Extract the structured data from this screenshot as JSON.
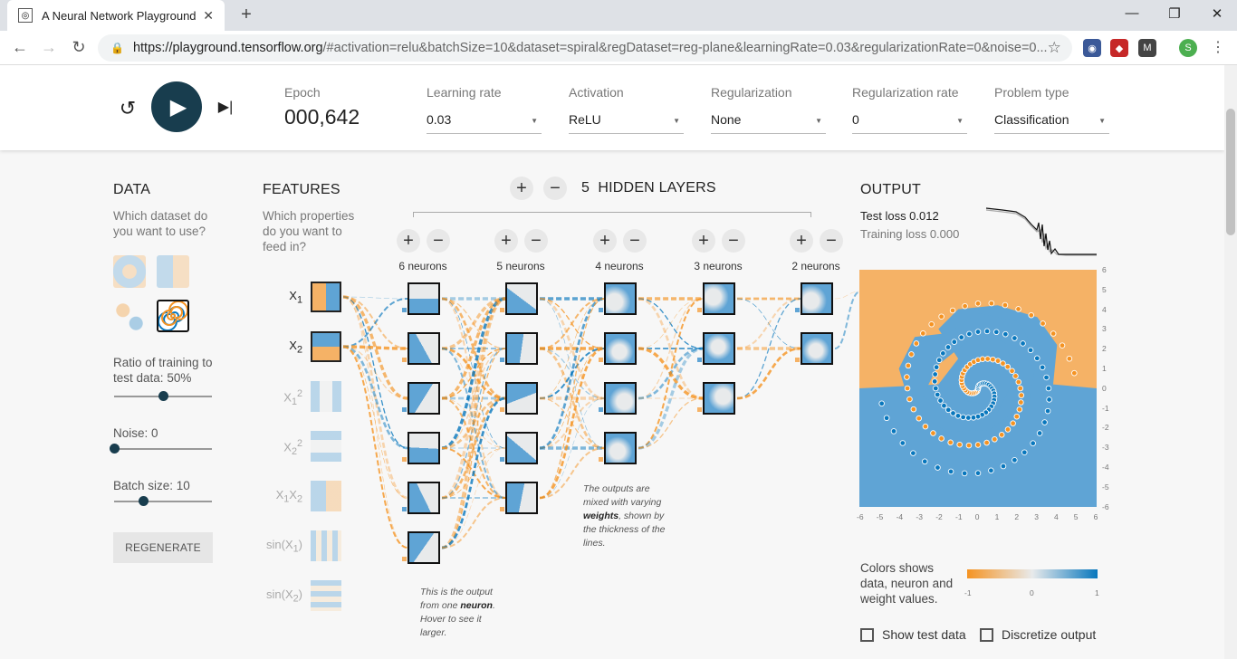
{
  "browser": {
    "tab_title": "A Neural Network Playground",
    "url_host": "https://playground.tensorflow.org",
    "url_path": "/#activation=relu&batchSize=10&dataset=spiral&regDataset=reg-plane&learningRate=0.03&regularizationRate=0&noise=0...",
    "profile_initial": "S"
  },
  "controls": {
    "epoch_label": "Epoch",
    "epoch_value": "000,642",
    "learning_rate_label": "Learning rate",
    "learning_rate_value": "0.03",
    "activation_label": "Activation",
    "activation_value": "ReLU",
    "regularization_label": "Regularization",
    "regularization_value": "None",
    "reg_rate_label": "Regularization rate",
    "reg_rate_value": "0",
    "problem_type_label": "Problem type",
    "problem_type_value": "Classification"
  },
  "data_panel": {
    "title": "DATA",
    "question": "Which dataset do you want to use?",
    "selected_dataset": "spiral",
    "ratio_label": "Ratio of training to test data:",
    "ratio_value": "50%",
    "ratio_fraction": 0.5,
    "noise_label": "Noise:",
    "noise_value": "0",
    "noise_fraction": 0,
    "batch_label": "Batch size:",
    "batch_value": "10",
    "batch_fraction": 0.3,
    "regenerate_label": "REGENERATE"
  },
  "features_panel": {
    "title": "FEATURES",
    "question": "Which properties do you want to feed in?",
    "features": [
      {
        "label_html": "X<sub>1</sub>",
        "active": true
      },
      {
        "label_html": "X<sub>2</sub>",
        "active": true
      },
      {
        "label_html": "X<sub>1</sub><sup>2</sup>",
        "active": false
      },
      {
        "label_html": "X<sub>2</sub><sup>2</sup>",
        "active": false
      },
      {
        "label_html": "X<sub>1</sub>X<sub>2</sub>",
        "active": false
      },
      {
        "label_html": "sin(X<sub>1</sub>)",
        "active": false
      },
      {
        "label_html": "sin(X<sub>2</sub>)",
        "active": false
      }
    ]
  },
  "network": {
    "hidden_layers_count": "5",
    "hidden_layers_label": "HIDDEN LAYERS",
    "layers": [
      {
        "neurons": 6,
        "label": "6 neurons"
      },
      {
        "neurons": 5,
        "label": "5 neurons"
      },
      {
        "neurons": 4,
        "label": "4 neurons"
      },
      {
        "neurons": 3,
        "label": "3 neurons"
      },
      {
        "neurons": 2,
        "label": "2 neurons"
      }
    ],
    "note_neuron": "This is the output from one <b>neuron</b>. Hover to see it larger.",
    "note_weights": "The outputs are mixed with varying <b>weights</b>, shown by the thickness of the lines."
  },
  "output_panel": {
    "title": "OUTPUT",
    "test_loss": "Test loss 0.012",
    "training_loss": "Training loss 0.000",
    "axis_ticks": [
      "-6",
      "-5",
      "-4",
      "-3",
      "-2",
      "-1",
      "0",
      "1",
      "2",
      "3",
      "4",
      "5",
      "6"
    ],
    "y_axis_ticks": [
      "6",
      "5",
      "4",
      "3",
      "2",
      "1",
      "0",
      "-1",
      "-2",
      "-3",
      "-4",
      "-5",
      "-6"
    ],
    "legend_text": "Colors shows data, neuron and weight values.",
    "legend_ticks": [
      "-1",
      "0",
      "1"
    ],
    "show_test_data_label": "Show test data",
    "discretize_label": "Discretize output"
  },
  "colors": {
    "orange": "#f59322",
    "blue": "#0877bd",
    "light_orange": "#f5b266",
    "light_blue": "#5fa4d5",
    "dark_button": "#183d4e"
  }
}
